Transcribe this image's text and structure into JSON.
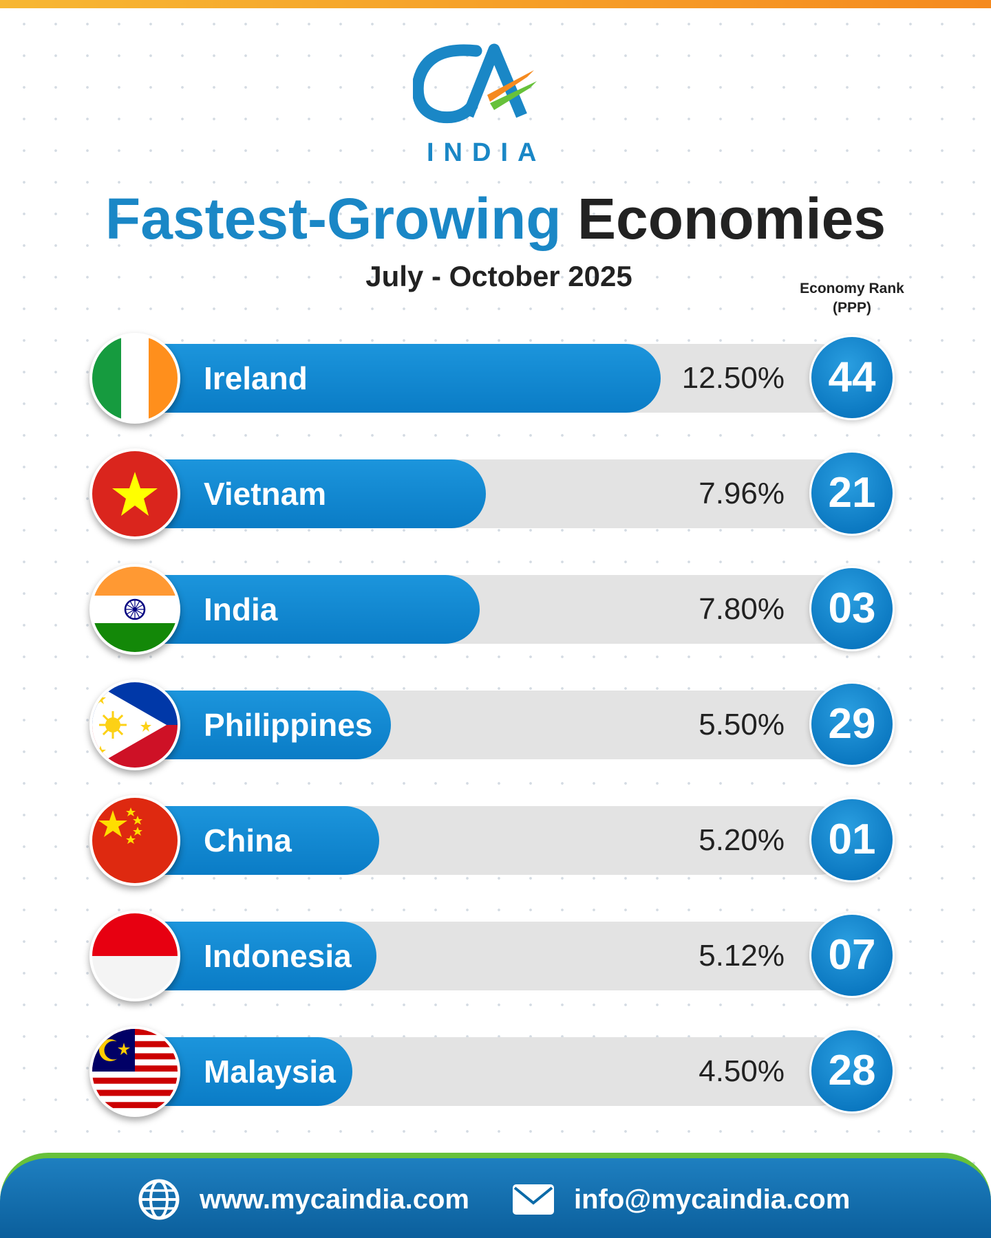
{
  "brand": {
    "logo_text": "CA",
    "logo_sub": "INDIA"
  },
  "title": {
    "part1": "Fastest-Growing",
    "part2": "Economies"
  },
  "subtitle": "July - October 2025",
  "rank_header": {
    "line1": "Economy Rank",
    "line2": "(PPP)"
  },
  "colors": {
    "bar": "#0a86d0",
    "track": "#e3e3e3",
    "accent": "#1a87c6",
    "footer": "#0b6aa8",
    "footer_border": "#67c13a"
  },
  "chart_data": {
    "type": "bar",
    "orientation": "horizontal",
    "title": "Fastest-Growing Economies",
    "subtitle": "July - October 2025",
    "categories": [
      "Ireland",
      "Vietnam",
      "India",
      "Philippines",
      "China",
      "Indonesia",
      "Malaysia"
    ],
    "values": [
      12.5,
      7.96,
      7.8,
      5.5,
      5.2,
      5.12,
      4.5
    ],
    "value_labels": [
      "12.50%",
      "7.96%",
      "7.80%",
      "5.50%",
      "5.20%",
      "5.12%",
      "4.50%"
    ],
    "ranks": [
      "44",
      "21",
      "03",
      "29",
      "01",
      "07",
      "28"
    ],
    "rank_label": "Economy Rank (PPP)",
    "flags": [
      "ireland-flag-icon",
      "vietnam-flag-icon",
      "india-flag-icon",
      "philippines-flag-icon",
      "china-flag-icon",
      "indonesia-flag-icon",
      "malaysia-flag-icon"
    ]
  },
  "footer": {
    "website": "www.mycaindia.com",
    "email": "info@mycaindia.com",
    "website_icon": "globe-icon",
    "email_icon": "envelope-icon"
  }
}
